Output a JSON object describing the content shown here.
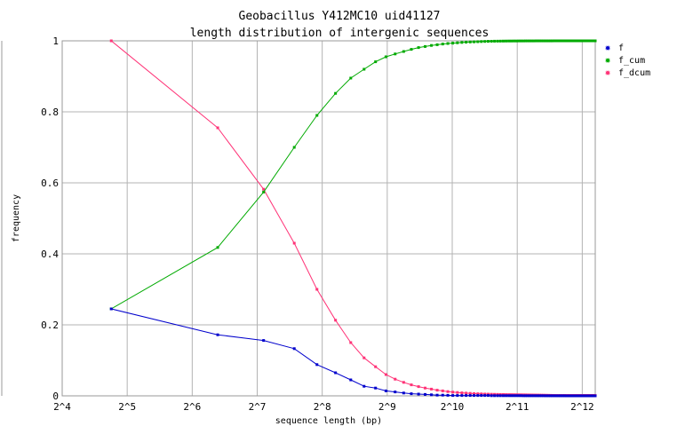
{
  "chart_data": {
    "type": "line",
    "title": "Geobacillus Y412MC10 uid41127",
    "subtitle": "length distribution of intergenic sequences",
    "xlabel": "sequence length (bp)",
    "ylabel": "frequency",
    "x_scale": "log2",
    "xlim_exp": [
      4,
      12.2
    ],
    "ylim": [
      0,
      1
    ],
    "grid": true,
    "legend_position": "right",
    "x_ticks": [
      {
        "exp": 4,
        "label": "2^4"
      },
      {
        "exp": 5,
        "label": "2^5"
      },
      {
        "exp": 6,
        "label": "2^6"
      },
      {
        "exp": 7,
        "label": "2^7"
      },
      {
        "exp": 8,
        "label": "2^8"
      },
      {
        "exp": 9,
        "label": "2^9"
      },
      {
        "exp": 10,
        "label": "2^10"
      },
      {
        "exp": 11,
        "label": "2^11"
      },
      {
        "exp": 12,
        "label": "2^12"
      }
    ],
    "y_ticks": [
      {
        "value": 0,
        "label": "0"
      },
      {
        "value": 0.2,
        "label": "0.2"
      },
      {
        "value": 0.4,
        "label": "0.4"
      },
      {
        "value": 0.6,
        "label": "0.6"
      },
      {
        "value": 0.8,
        "label": "0.8"
      },
      {
        "value": 1,
        "label": "1"
      }
    ],
    "x": [
      27,
      84,
      137,
      190,
      242,
      295,
      347,
      400,
      452,
      505,
      557,
      610,
      662,
      715,
      767,
      820,
      872,
      925,
      977,
      1030,
      1082,
      1135,
      1187,
      1240,
      1292,
      1345,
      1397,
      1450,
      1502,
      1555,
      1607,
      1660,
      1712,
      1765,
      1817,
      1870,
      1922,
      1975,
      2027,
      2080,
      2132,
      2185,
      2237,
      2290,
      2342,
      2395,
      2447,
      2500,
      2552,
      2605,
      2657,
      2710,
      2762,
      2815,
      2867,
      2920,
      2972,
      3025,
      3077,
      3130,
      3182,
      3235,
      3287,
      3340,
      3392,
      3445,
      3497,
      3550,
      3602,
      3655,
      3707,
      3760,
      3812,
      3865,
      3917,
      3970,
      4022,
      4075,
      4127,
      4180,
      4232,
      4285,
      4337,
      4390,
      4442,
      4495,
      4547,
      4600,
      4652,
      4705
    ],
    "series": [
      {
        "name": "f",
        "color": "#0000cc",
        "values": [
          0.245,
          0.172,
          0.156,
          0.133,
          0.088,
          0.065,
          0.045,
          0.027,
          0.022,
          0.014,
          0.011,
          0.008,
          0.006,
          0.005,
          0.004,
          0.003,
          0.002,
          0.002,
          0.0015,
          0.001,
          0.001,
          0.001,
          0.001,
          0.001,
          0.001,
          0.001,
          0.001,
          0.001,
          0.001,
          0.0005,
          0.0005,
          0.0005,
          0.0005,
          0.0005,
          0.0005,
          0.0005,
          0.0005,
          0.0005,
          0.0005,
          0.0005,
          0.0005,
          0.0003,
          0.0003,
          0.0003,
          0.0003,
          0.0003,
          0.0003,
          0.0003,
          0.0003,
          0.0003,
          0.0003,
          0.0003,
          0.0002,
          0.0002,
          0.0002,
          0.0002,
          0.0002,
          0.0002,
          0.0002,
          0.0002,
          0.0002,
          0.0002,
          0.0002,
          0.0002,
          0.0002,
          0.0001,
          0.0001,
          0.0001,
          0.0001,
          0.0001,
          0.0001,
          0.0001,
          0.0001,
          0.0001,
          0.0001,
          0.0001,
          0.0001,
          0.0001,
          0.0001,
          0.0001,
          0.0001,
          0.0001,
          0.0001,
          0.0001,
          0.0001,
          0.0001,
          0.0001,
          0.0001,
          0.0001,
          0.0001
        ]
      },
      {
        "name": "f_cum",
        "color": "#00aa00",
        "values": [
          0.245,
          0.418,
          0.574,
          0.7,
          0.79,
          0.852,
          0.895,
          0.92,
          0.941,
          0.955,
          0.963,
          0.97,
          0.976,
          0.981,
          0.984,
          0.987,
          0.989,
          0.991,
          0.9925,
          0.9935,
          0.9945,
          0.9955,
          0.9962,
          0.9968,
          0.9972,
          0.9976,
          0.998,
          0.9983,
          0.9986,
          0.9988,
          0.999,
          0.9991,
          0.9992,
          0.9993,
          0.9994,
          0.9995,
          0.9995,
          0.9996,
          0.9996,
          0.9997,
          0.9997,
          0.9997,
          0.9998,
          0.9998,
          0.9998,
          0.9998,
          0.9998,
          0.9999,
          0.9999,
          0.9999,
          0.9999,
          0.9999,
          0.9999,
          0.9999,
          0.9999,
          0.9999,
          0.9999,
          1,
          1,
          1,
          1,
          1,
          1,
          1,
          1,
          1,
          1,
          1,
          1,
          1,
          1,
          1,
          1,
          1,
          1,
          1,
          1,
          1,
          1,
          1,
          1,
          1,
          1,
          1,
          1,
          1,
          1,
          1,
          1,
          1
        ]
      },
      {
        "name": "f_dcum",
        "color": "#ff3377",
        "values": [
          1,
          0.755,
          0.582,
          0.43,
          0.3,
          0.213,
          0.15,
          0.107,
          0.082,
          0.06,
          0.047,
          0.038,
          0.031,
          0.026,
          0.022,
          0.019,
          0.016,
          0.014,
          0.012,
          0.0105,
          0.0095,
          0.0085,
          0.0077,
          0.007,
          0.0064,
          0.0059,
          0.0055,
          0.0051,
          0.0048,
          0.0045,
          0.0043,
          0.0041,
          0.0039,
          0.0037,
          0.0035,
          0.0034,
          0.0033,
          0.0032,
          0.0031,
          0.003,
          0.0029,
          0.0028,
          0.0027,
          0.0026,
          0.0025,
          0.0024,
          0.0023,
          0.0022,
          0.0021,
          0.002,
          0.0019,
          0.0018,
          0.0017,
          0.0016,
          0.0015,
          0.0014,
          0.0013,
          0.0012,
          0.0011,
          0.001,
          0.001,
          0.001,
          0.001,
          0.001,
          0.001,
          0.001,
          0.001,
          0.001,
          0.001,
          0.001,
          0.001,
          0.001,
          0.001,
          0.001,
          0.001,
          0.001,
          0.001,
          0.001,
          0.001,
          0.001,
          0.001,
          0.001,
          0.001,
          0.001,
          0.001,
          0.001,
          0.001,
          0.001,
          0.001,
          0.001
        ]
      }
    ]
  }
}
